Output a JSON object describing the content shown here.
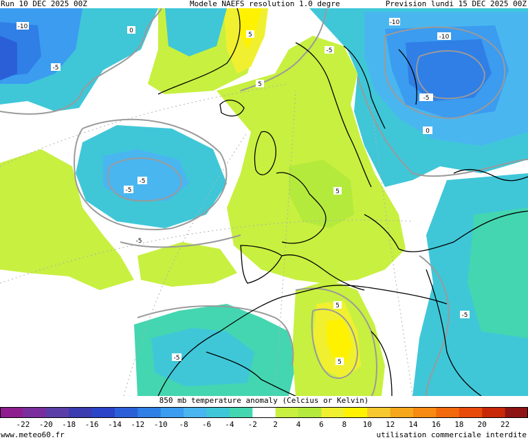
{
  "header": {
    "run": "Run 10 DEC 2025 00Z",
    "model": "Modele NAEFS resolution 1.0 degre",
    "forecast": "Prevision lundi 15 DEC 2025 00Z"
  },
  "map": {
    "caption": "850 mb temperature anomaly (Celcius or Kelvin)",
    "contour_labels": [
      "-10",
      "-5",
      "0",
      "5",
      "-5",
      "-10",
      "-10",
      "-5",
      "0",
      "-5",
      "-5",
      "-5",
      "5",
      "5",
      "5",
      "-5",
      "-5",
      "5"
    ]
  },
  "legend": {
    "values": [
      "-22",
      "-20",
      "-18",
      "-16",
      "-14",
      "-12",
      "-10",
      "-8",
      "-6",
      "-4",
      "-2",
      "2",
      "4",
      "6",
      "8",
      "10",
      "12",
      "14",
      "16",
      "18",
      "20",
      "22"
    ],
    "colors": [
      "#8e1e8e",
      "#7a2e9e",
      "#5b3ea8",
      "#3a3cb0",
      "#2c44c8",
      "#2b5fd8",
      "#2f7fe6",
      "#3b9cf0",
      "#4ab6f0",
      "#3fc7d8",
      "#44d6b0",
      "#ffffff",
      "#c8f040",
      "#b4ea3c",
      "#f0f030",
      "#fff200",
      "#f8c830",
      "#f6a71c",
      "#f68a12",
      "#f26a0c",
      "#e84a0a",
      "#c82808",
      "#8e1414"
    ]
  },
  "footer": {
    "site": "www.meteo60.fr",
    "notice": "utilisation commerciale interdite"
  }
}
